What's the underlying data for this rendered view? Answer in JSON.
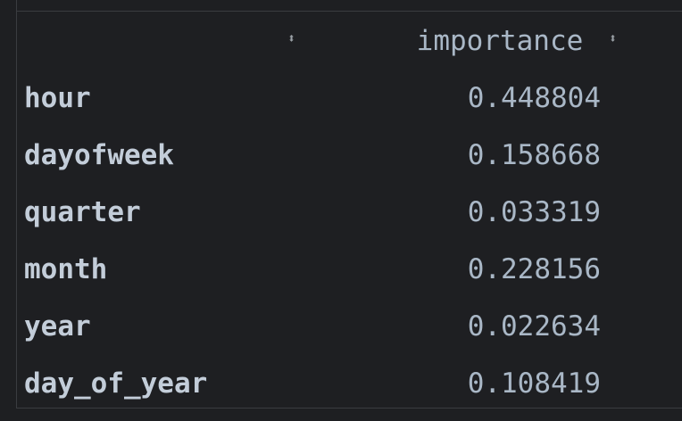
{
  "table": {
    "index_header": "",
    "columns": [
      "importance"
    ],
    "sort_icon": "sort-updown-icon",
    "rows": [
      {
        "label": "hour",
        "importance": "0.448804"
      },
      {
        "label": "dayofweek",
        "importance": "0.158668"
      },
      {
        "label": "quarter",
        "importance": "0.033319"
      },
      {
        "label": "month",
        "importance": "0.228156"
      },
      {
        "label": "year",
        "importance": "0.022634"
      },
      {
        "label": "day_of_year",
        "importance": "0.108419"
      }
    ]
  },
  "colors": {
    "background": "#1e1f22",
    "text": "#a9b7c6",
    "border": "#3a3c40"
  }
}
